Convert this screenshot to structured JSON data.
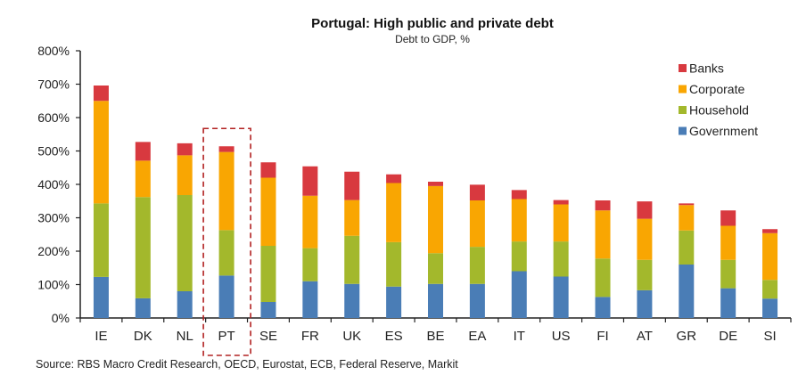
{
  "chart_data": {
    "type": "bar",
    "stacked": true,
    "title": "Portugal: High public and private debt",
    "subtitle": "Debt to GDP,  %",
    "xlabel": "",
    "ylabel": "",
    "ylim": [
      0,
      800
    ],
    "yticks": [
      0,
      100,
      200,
      300,
      400,
      500,
      600,
      700,
      800
    ],
    "ytick_labels": [
      "0%",
      "100%",
      "200%",
      "300%",
      "400%",
      "500%",
      "600%",
      "700%",
      "800%"
    ],
    "grid": false,
    "legend_position": "top-right",
    "highlight": {
      "category": "PT",
      "style": "dashed-box",
      "color": "#b22222"
    },
    "categories": [
      "IE",
      "DK",
      "NL",
      "PT",
      "SE",
      "FR",
      "UK",
      "ES",
      "BE",
      "EA",
      "IT",
      "US",
      "FI",
      "AT",
      "GR",
      "DE",
      "SI"
    ],
    "series": [
      {
        "name": "Government",
        "color": "#4a7db6",
        "values": [
          123,
          59,
          80,
          127,
          48,
          110,
          102,
          94,
          102,
          102,
          140,
          124,
          63,
          83,
          160,
          89,
          58
        ]
      },
      {
        "name": "Household",
        "color": "#a3b82c",
        "values": [
          220,
          303,
          288,
          136,
          168,
          99,
          144,
          133,
          92,
          111,
          89,
          105,
          115,
          91,
          102,
          85,
          56
        ]
      },
      {
        "name": "Corporate",
        "color": "#f9a602",
        "values": [
          307,
          109,
          119,
          234,
          204,
          157,
          107,
          177,
          201,
          139,
          127,
          111,
          144,
          123,
          76,
          102,
          140
        ]
      },
      {
        "name": "Banks",
        "color": "#d8393f",
        "values": [
          46,
          56,
          36,
          17,
          46,
          88,
          85,
          26,
          13,
          47,
          27,
          13,
          30,
          52,
          5,
          46,
          12
        ]
      }
    ],
    "legend_order": [
      "Banks",
      "Corporate",
      "Household",
      "Government"
    ],
    "source": "Source: RBS  Macro Credit  Research, OECD,  Eurostat, ECB,  Federal Reserve, Markit"
  }
}
